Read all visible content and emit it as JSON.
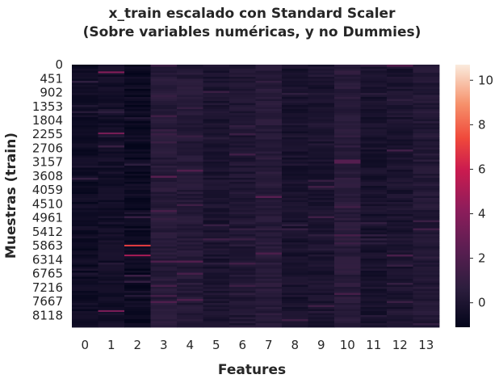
{
  "chart_data": {
    "type": "heatmap",
    "title": [
      "x_train escalado con Standard Scaler",
      "(Sobre variables numéricas, y no Dummies)"
    ],
    "xlabel": "Features",
    "ylabel": "Muestras (train)",
    "x_categories": [
      "0",
      "1",
      "2",
      "3",
      "4",
      "5",
      "6",
      "7",
      "8",
      "9",
      "10",
      "11",
      "12",
      "13"
    ],
    "y_tick_labels": [
      "0",
      "451",
      "902",
      "1353",
      "1804",
      "2255",
      "2706",
      "3157",
      "3608",
      "4059",
      "4510",
      "4961",
      "5412",
      "5863",
      "6314",
      "6765",
      "7216",
      "7667",
      "8118"
    ],
    "n_rows": 8500,
    "colorbar": {
      "range": [
        -1.1,
        10.7
      ],
      "ticks": [
        0,
        2,
        4,
        6,
        8,
        10
      ],
      "tick_labels": [
        "0",
        "2",
        "4",
        "6",
        "8",
        "10"
      ],
      "colormap": "rocket"
    },
    "column_typical_values": [
      -0.6,
      -0.4,
      -0.7,
      0.4,
      0.3,
      -0.1,
      0.1,
      0.4,
      -0.2,
      -0.1,
      0.5,
      -0.2,
      -0.1,
      0.2
    ],
    "highlights": [
      {
        "feature": "1",
        "sample": 220,
        "value": 4.0
      },
      {
        "feature": "1",
        "sample": 2200,
        "value": 3.5
      },
      {
        "feature": "1",
        "sample": 7950,
        "value": 3.5
      },
      {
        "feature": "2",
        "sample": 5830,
        "value": 7.0
      },
      {
        "feature": "2",
        "sample": 6150,
        "value": 5.0
      },
      {
        "feature": "12",
        "sample": 10,
        "value": 2.5
      }
    ]
  }
}
